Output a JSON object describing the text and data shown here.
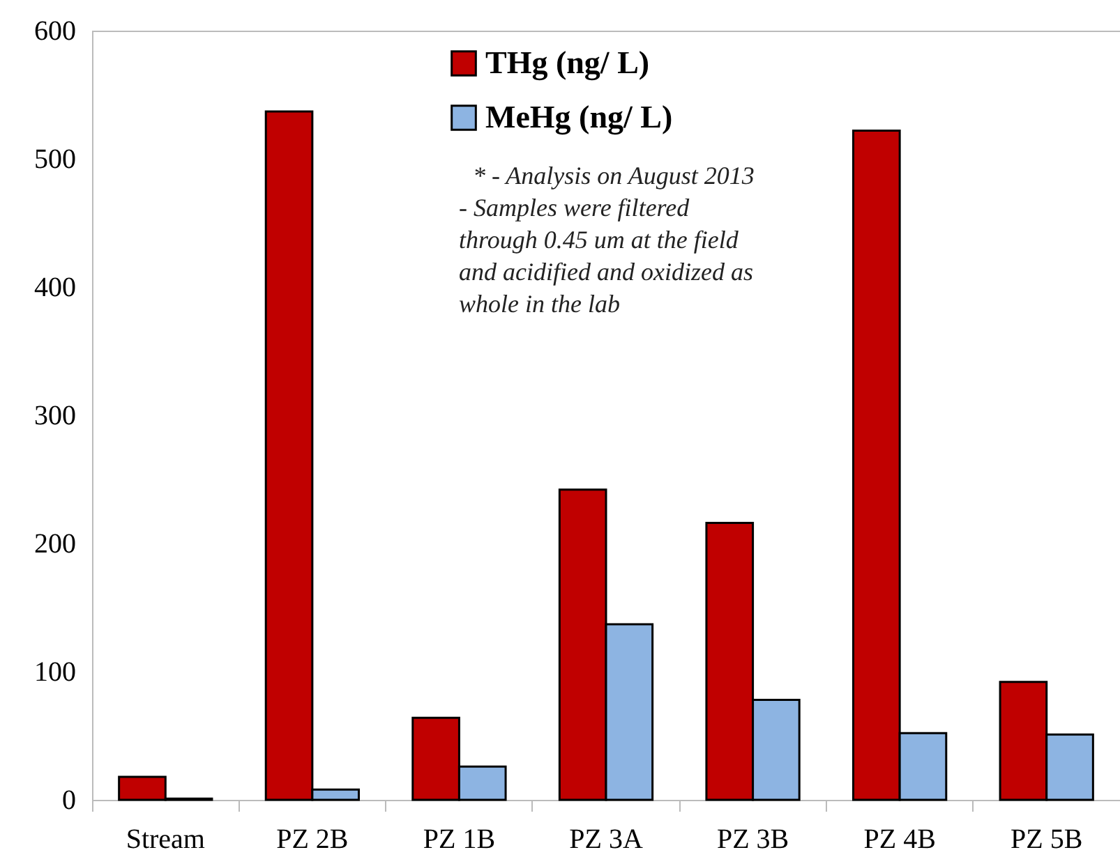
{
  "chart_data": {
    "type": "bar",
    "categories": [
      "Stream",
      "PZ 2B",
      "PZ 1B",
      "PZ 3A",
      "PZ 3B",
      "PZ 4B",
      "PZ 5B"
    ],
    "series": [
      {
        "name": "THg (ng/ L)",
        "color": "#c00000",
        "values": [
          18,
          537,
          64,
          242,
          216,
          522,
          92
        ]
      },
      {
        "name": "MeHg (ng/ L)",
        "color": "#8db4e2",
        "values": [
          1,
          8,
          26,
          137,
          78,
          52,
          51
        ]
      }
    ],
    "ylim": [
      0,
      600
    ],
    "yticks": [
      0,
      100,
      200,
      300,
      400,
      500,
      600
    ],
    "grid": false,
    "legend": "top",
    "annotations": [
      "* - Analysis on August 2013",
      "- Samples were  filtered\nthrough 0.45 um at the field\nand acidified and oxidized as\nwhole in the lab"
    ]
  }
}
